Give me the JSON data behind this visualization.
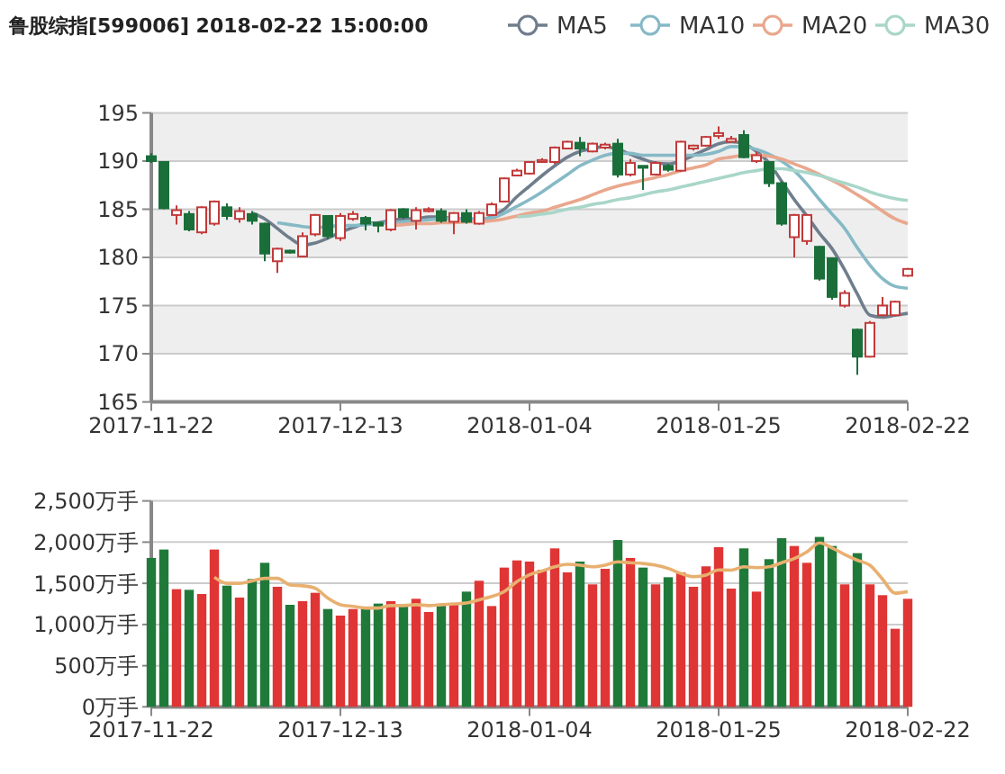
{
  "chart_data": [
    {
      "type": "candlestick",
      "title": "鲁股综指[599006] 2018-02-22 15:00:00",
      "categories": [
        "2017-11-22",
        null,
        null,
        null,
        null,
        null,
        null,
        null,
        null,
        null,
        null,
        null,
        null,
        null,
        null,
        "2017-12-13",
        null,
        null,
        null,
        null,
        null,
        null,
        null,
        null,
        null,
        null,
        null,
        null,
        null,
        null,
        "2018-01-04",
        null,
        null,
        null,
        null,
        null,
        null,
        null,
        null,
        null,
        null,
        null,
        null,
        null,
        null,
        "2018-01-25",
        null,
        null,
        null,
        null,
        null,
        null,
        null,
        null,
        null,
        null,
        null,
        null,
        null,
        null,
        "2018-02-22"
      ],
      "ohlc": [
        [
          190.5,
          190.8,
          189.8,
          190.0
        ],
        [
          189.9,
          190.0,
          185.0,
          185.1
        ],
        [
          184.4,
          185.4,
          183.4,
          184.9
        ],
        [
          184.5,
          184.8,
          182.7,
          182.9
        ],
        [
          182.6,
          185.3,
          182.4,
          185.2
        ],
        [
          183.5,
          185.9,
          183.3,
          185.8
        ],
        [
          185.2,
          185.6,
          183.9,
          184.3
        ],
        [
          184.0,
          185.2,
          183.6,
          184.8
        ],
        [
          184.5,
          184.8,
          183.4,
          183.8
        ],
        [
          183.5,
          183.6,
          179.6,
          180.4
        ],
        [
          179.6,
          181.0,
          178.4,
          180.9
        ],
        [
          180.7,
          180.8,
          180.4,
          180.5
        ],
        [
          180.1,
          182.6,
          180.0,
          182.2
        ],
        [
          182.4,
          184.5,
          182.2,
          184.4
        ],
        [
          184.3,
          184.4,
          181.9,
          182.2
        ],
        [
          182.0,
          184.6,
          181.7,
          184.3
        ],
        [
          184.0,
          184.8,
          183.8,
          184.5
        ],
        [
          184.1,
          184.3,
          182.8,
          183.5
        ],
        [
          183.6,
          183.7,
          182.6,
          183.3
        ],
        [
          182.9,
          185.0,
          182.7,
          184.9
        ],
        [
          185.0,
          185.1,
          184.0,
          184.2
        ],
        [
          183.8,
          185.2,
          182.9,
          184.9
        ],
        [
          184.8,
          185.2,
          184.7,
          185.0
        ],
        [
          184.8,
          185.1,
          183.6,
          183.8
        ],
        [
          183.7,
          184.7,
          182.4,
          184.6
        ],
        [
          184.6,
          185.0,
          183.5,
          183.7
        ],
        [
          183.5,
          184.8,
          183.4,
          184.6
        ],
        [
          184.4,
          185.7,
          184.3,
          185.5
        ],
        [
          185.8,
          188.3,
          185.7,
          188.2
        ],
        [
          188.5,
          189.2,
          188.4,
          189.0
        ],
        [
          188.7,
          190.0,
          188.6,
          189.9
        ],
        [
          189.9,
          190.3,
          189.8,
          190.1
        ],
        [
          189.9,
          191.5,
          189.7,
          191.4
        ],
        [
          191.3,
          192.1,
          191.2,
          192.0
        ],
        [
          191.9,
          192.5,
          190.5,
          191.3
        ],
        [
          191.0,
          191.9,
          190.9,
          191.8
        ],
        [
          191.4,
          191.9,
          191.2,
          191.7
        ],
        [
          191.8,
          192.3,
          188.3,
          188.6
        ],
        [
          188.6,
          190.2,
          188.4,
          189.8
        ],
        [
          189.5,
          189.5,
          187.0,
          189.3
        ],
        [
          188.6,
          190.0,
          188.5,
          189.8
        ],
        [
          189.5,
          189.7,
          188.9,
          189.1
        ],
        [
          189.0,
          192.1,
          188.9,
          192.0
        ],
        [
          191.3,
          191.7,
          191.1,
          191.6
        ],
        [
          191.6,
          192.6,
          191.5,
          192.5
        ],
        [
          192.6,
          193.6,
          192.3,
          192.9
        ],
        [
          192.0,
          192.6,
          191.9,
          192.3
        ],
        [
          192.7,
          193.2,
          190.3,
          190.4
        ],
        [
          190.0,
          191.0,
          189.8,
          190.6
        ],
        [
          189.9,
          190.0,
          187.3,
          187.7
        ],
        [
          187.7,
          187.9,
          183.3,
          183.5
        ],
        [
          182.1,
          184.5,
          180.0,
          184.4
        ],
        [
          181.7,
          184.5,
          181.3,
          184.4
        ],
        [
          181.1,
          181.2,
          177.6,
          177.8
        ],
        [
          179.9,
          180.0,
          175.6,
          175.9
        ],
        [
          175.0,
          176.6,
          174.8,
          176.3
        ],
        [
          172.5,
          172.6,
          167.8,
          169.7
        ],
        [
          169.7,
          173.4,
          169.6,
          173.2
        ],
        [
          174.0,
          175.9,
          173.9,
          175.0
        ],
        [
          174.0,
          175.5,
          173.9,
          175.4
        ],
        [
          178.1,
          178.9,
          178.0,
          178.8
        ]
      ],
      "colors": [
        "#1a6e3a",
        "#1a6e3a",
        "#c23a3a",
        "#1a6e3a",
        "#c23a3a",
        "#c23a3a",
        "#1a6e3a",
        "#c23a3a",
        "#1a6e3a",
        "#1a6e3a",
        "#c23a3a",
        "#1a6e3a",
        "#c23a3a",
        "#c23a3a",
        "#1a6e3a",
        "#c23a3a",
        "#c23a3a",
        "#1a6e3a",
        "#1a6e3a",
        "#c23a3a",
        "#1a6e3a",
        "#c23a3a",
        "#c23a3a",
        "#1a6e3a",
        "#c23a3a",
        "#1a6e3a",
        "#c23a3a",
        "#c23a3a",
        "#c23a3a",
        "#c23a3a",
        "#c23a3a",
        "#c23a3a",
        "#c23a3a",
        "#c23a3a",
        "#1a6e3a",
        "#c23a3a",
        "#c23a3a",
        "#1a6e3a",
        "#c23a3a",
        "#1a6e3a",
        "#c23a3a",
        "#1a6e3a",
        "#c23a3a",
        "#c23a3a",
        "#c23a3a",
        "#c23a3a",
        "#c23a3a",
        "#1a6e3a",
        "#c23a3a",
        "#1a6e3a",
        "#1a6e3a",
        "#c23a3a",
        "#c23a3a",
        "#1a6e3a",
        "#1a6e3a",
        "#c23a3a",
        "#1a6e3a",
        "#c23a3a",
        "#c23a3a",
        "#c23a3a",
        "#c23a3a"
      ],
      "series": [
        {
          "name": "MA5",
          "type": "line",
          "color": "#6f7d8c",
          "values": [
            null,
            null,
            null,
            null,
            null,
            null,
            null,
            null,
            184.6,
            184.0,
            183.0,
            182.0,
            181.3,
            181.5,
            182.0,
            182.6,
            183.1,
            183.5,
            183.6,
            183.8,
            184.0,
            184.0,
            184.2,
            184.2,
            184.0,
            184.0,
            183.9,
            184.2,
            185.0,
            186.3,
            187.4,
            188.5,
            189.5,
            190.4,
            191.0,
            191.3,
            191.5,
            191.2,
            190.7,
            190.2,
            189.8,
            189.7,
            190.0,
            190.6,
            191.2,
            191.8,
            192.0,
            191.8,
            191.0,
            189.8,
            187.9,
            186.0,
            184.3,
            182.5,
            180.9,
            178.7,
            176.2,
            174.0,
            173.8,
            174.0,
            174.2
          ]
        },
        {
          "name": "MA10",
          "type": "line",
          "color": "#86b9c6",
          "values": [
            null,
            null,
            null,
            null,
            null,
            null,
            null,
            null,
            null,
            null,
            183.6,
            183.4,
            183.2,
            183.1,
            183.2,
            183.3,
            183.3,
            183.4,
            183.5,
            183.6,
            183.7,
            183.8,
            183.9,
            184.0,
            184.0,
            184.0,
            184.0,
            184.1,
            184.6,
            185.3,
            186.0,
            186.8,
            187.7,
            188.6,
            189.5,
            190.1,
            190.6,
            190.8,
            190.8,
            190.6,
            190.6,
            190.6,
            190.6,
            190.6,
            190.7,
            191.0,
            191.5,
            191.5,
            191.2,
            190.7,
            190.0,
            189.0,
            187.6,
            186.0,
            184.5,
            183.0,
            181.0,
            179.2,
            177.8,
            177.0,
            176.8
          ]
        },
        {
          "name": "MA20",
          "type": "line",
          "color": "#e9a78d",
          "values": [
            null,
            null,
            null,
            null,
            null,
            null,
            null,
            null,
            null,
            null,
            null,
            null,
            null,
            null,
            null,
            null,
            null,
            null,
            null,
            183.3,
            183.4,
            183.5,
            183.5,
            183.6,
            183.6,
            183.7,
            183.7,
            183.8,
            184.0,
            184.3,
            184.6,
            184.8,
            185.2,
            185.6,
            186.0,
            186.5,
            187.0,
            187.4,
            187.7,
            188.0,
            188.3,
            188.6,
            189.0,
            189.3,
            189.6,
            190.2,
            190.4,
            190.6,
            190.6,
            190.5,
            190.2,
            189.7,
            189.2,
            188.6,
            188.0,
            187.3,
            186.5,
            185.7,
            184.8,
            184.0,
            183.5
          ]
        },
        {
          "name": "MA30",
          "type": "line",
          "color": "#a9d6c9",
          "values": [
            null,
            null,
            null,
            null,
            null,
            null,
            null,
            null,
            null,
            null,
            null,
            null,
            null,
            null,
            null,
            null,
            null,
            null,
            null,
            null,
            null,
            null,
            null,
            null,
            null,
            null,
            null,
            null,
            null,
            184.2,
            184.3,
            184.5,
            184.7,
            185.0,
            185.2,
            185.5,
            185.7,
            186.0,
            186.2,
            186.5,
            186.8,
            187.0,
            187.3,
            187.6,
            187.9,
            188.2,
            188.5,
            188.8,
            189.0,
            189.2,
            189.2,
            189.0,
            188.8,
            188.5,
            188.1,
            187.7,
            187.3,
            186.8,
            186.4,
            186.1,
            185.9
          ]
        }
      ],
      "ylim": [
        165,
        195
      ],
      "yticks": [
        165,
        170,
        175,
        180,
        185,
        190,
        195
      ],
      "grid": "y",
      "legend": "top right",
      "marker": "none"
    },
    {
      "type": "bar",
      "categories": [
        "2017-11-22",
        null,
        null,
        null,
        null,
        null,
        null,
        null,
        null,
        null,
        null,
        null,
        null,
        null,
        null,
        "2017-12-13",
        null,
        null,
        null,
        null,
        null,
        null,
        null,
        null,
        null,
        null,
        null,
        null,
        null,
        null,
        "2018-01-04",
        null,
        null,
        null,
        null,
        null,
        null,
        null,
        null,
        null,
        null,
        null,
        null,
        null,
        null,
        "2018-01-25",
        null,
        null,
        null,
        null,
        null,
        null,
        null,
        null,
        null,
        null,
        null,
        null,
        null,
        null,
        "2018-02-22"
      ],
      "series": [
        {
          "type": "bar",
          "values": [
            1808,
            1910,
            1429,
            1421,
            1370,
            1910,
            1472,
            1327,
            1552,
            1749,
            1458,
            1239,
            1283,
            1385,
            1188,
            1108,
            1188,
            1188,
            1254,
            1283,
            1232,
            1312,
            1152,
            1239,
            1261,
            1399,
            1531,
            1224,
            1691,
            1778,
            1764,
            1662,
            1924,
            1633,
            1764,
            1487,
            1676,
            2026,
            1808,
            1691,
            1487,
            1574,
            1633,
            1458,
            1706,
            1939,
            1436,
            1924,
            1399,
            1793,
            2048,
            1953,
            1749,
            2063,
            1953,
            1487,
            1866,
            1487,
            1356,
            948,
            1312
          ],
          "colors": [
            "#1f7a3a",
            "#1f7a3a",
            "#e03535",
            "#1f7a3a",
            "#e03535",
            "#e03535",
            "#1f7a3a",
            "#e03535",
            "#1f7a3a",
            "#1f7a3a",
            "#e03535",
            "#1f7a3a",
            "#e03535",
            "#e03535",
            "#1f7a3a",
            "#e03535",
            "#e03535",
            "#1f7a3a",
            "#1f7a3a",
            "#e03535",
            "#1f7a3a",
            "#e03535",
            "#e03535",
            "#1f7a3a",
            "#e03535",
            "#1f7a3a",
            "#e03535",
            "#e03535",
            "#e03535",
            "#e03535",
            "#e03535",
            "#e03535",
            "#e03535",
            "#e03535",
            "#1f7a3a",
            "#e03535",
            "#e03535",
            "#1f7a3a",
            "#e03535",
            "#1f7a3a",
            "#e03535",
            "#1f7a3a",
            "#e03535",
            "#e03535",
            "#e03535",
            "#e03535",
            "#e03535",
            "#1f7a3a",
            "#e03535",
            "#1f7a3a",
            "#1f7a3a",
            "#e03535",
            "#e03535",
            "#1f7a3a",
            "#1f7a3a",
            "#e03535",
            "#1f7a3a",
            "#e03535",
            "#e03535",
            "#e03535",
            "#e03535"
          ]
        },
        {
          "type": "line",
          "color": "#e8b070",
          "values": [
            null,
            null,
            null,
            null,
            null,
            1574,
            1500,
            1500,
            1530,
            1560,
            1560,
            1480,
            1470,
            1440,
            1320,
            1239,
            1220,
            1200,
            1200,
            1230,
            1230,
            1240,
            1230,
            1240,
            1250,
            1260,
            1300,
            1340,
            1400,
            1520,
            1603,
            1650,
            1700,
            1730,
            1720,
            1700,
            1720,
            1760,
            1750,
            1740,
            1720,
            1680,
            1620,
            1580,
            1600,
            1662,
            1660,
            1700,
            1690,
            1700,
            1750,
            1800,
            1880,
            1990,
            1930,
            1850,
            1780,
            1720,
            1550,
            1380,
            1399
          ]
        }
      ],
      "ylim": [
        0,
        2500
      ],
      "yticks": [
        {
          "value": 0,
          "label": "0万手"
        },
        {
          "value": 500,
          "label": "500万手"
        },
        {
          "value": 1000,
          "label": "1,000万手"
        },
        {
          "value": 1500,
          "label": "1,500万手"
        },
        {
          "value": 2000,
          "label": "2,000万手"
        },
        {
          "value": 2500,
          "label": "2,500万手"
        }
      ],
      "grid": "y"
    }
  ]
}
